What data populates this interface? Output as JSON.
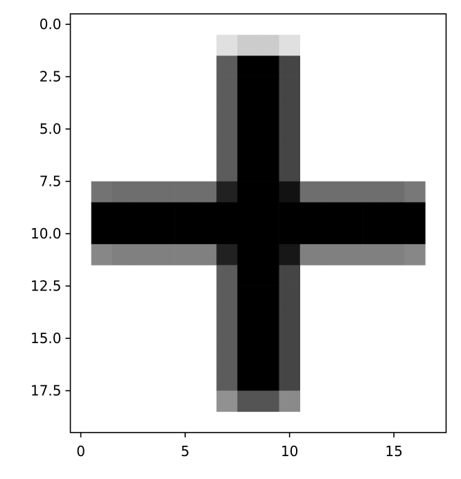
{
  "chart_data": {
    "type": "heatmap",
    "title": "",
    "xlabel": "",
    "ylabel": "",
    "colormap": "gray",
    "grid": false,
    "xlim": [
      -0.5,
      17.5
    ],
    "ylim": [
      19.5,
      -0.5
    ],
    "x_ticks": [
      0,
      5,
      10,
      15
    ],
    "x_tick_labels": [
      "0",
      "5",
      "10",
      "15"
    ],
    "y_ticks": [
      0.0,
      2.5,
      5.0,
      7.5,
      10.0,
      12.5,
      15.0,
      17.5
    ],
    "y_tick_labels": [
      "0.0",
      "2.5",
      "5.0",
      "7.5",
      "10.0",
      "12.5",
      "15.0",
      "17.5"
    ],
    "cells": [
      {
        "x": 7,
        "y": 1,
        "v": 0.88
      },
      {
        "x": 8,
        "y": 1,
        "v": 0.8
      },
      {
        "x": 9,
        "y": 1,
        "v": 0.8
      },
      {
        "x": 10,
        "y": 1,
        "v": 0.88
      },
      {
        "x": 7,
        "y": 2,
        "v": 0.36
      },
      {
        "x": 8,
        "y": 2,
        "v": 0
      },
      {
        "x": 9,
        "y": 2,
        "v": 0
      },
      {
        "x": 10,
        "y": 2,
        "v": 0.27
      },
      {
        "x": 7,
        "y": 3,
        "v": 0.36
      },
      {
        "x": 8,
        "y": 3,
        "v": 0
      },
      {
        "x": 9,
        "y": 3,
        "v": 0
      },
      {
        "x": 10,
        "y": 3,
        "v": 0.27
      },
      {
        "x": 7,
        "y": 4,
        "v": 0.36
      },
      {
        "x": 8,
        "y": 4,
        "v": 0
      },
      {
        "x": 9,
        "y": 4,
        "v": 0
      },
      {
        "x": 10,
        "y": 4,
        "v": 0.27
      },
      {
        "x": 7,
        "y": 5,
        "v": 0.36
      },
      {
        "x": 8,
        "y": 5,
        "v": 0
      },
      {
        "x": 9,
        "y": 5,
        "v": 0
      },
      {
        "x": 10,
        "y": 5,
        "v": 0.27
      },
      {
        "x": 7,
        "y": 6,
        "v": 0.36
      },
      {
        "x": 8,
        "y": 6,
        "v": 0
      },
      {
        "x": 9,
        "y": 6,
        "v": 0
      },
      {
        "x": 10,
        "y": 6,
        "v": 0.27
      },
      {
        "x": 7,
        "y": 7,
        "v": 0.36
      },
      {
        "x": 8,
        "y": 7,
        "v": 0
      },
      {
        "x": 9,
        "y": 7,
        "v": 0
      },
      {
        "x": 10,
        "y": 7,
        "v": 0.27
      },
      {
        "x": 1,
        "y": 8,
        "v": 0.45
      },
      {
        "x": 2,
        "y": 8,
        "v": 0.43
      },
      {
        "x": 3,
        "y": 8,
        "v": 0.43
      },
      {
        "x": 4,
        "y": 8,
        "v": 0.43
      },
      {
        "x": 5,
        "y": 8,
        "v": 0.43
      },
      {
        "x": 6,
        "y": 8,
        "v": 0.43
      },
      {
        "x": 7,
        "y": 8,
        "v": 0.13
      },
      {
        "x": 8,
        "y": 8,
        "v": 0
      },
      {
        "x": 9,
        "y": 8,
        "v": 0
      },
      {
        "x": 10,
        "y": 8,
        "v": 0.07
      },
      {
        "x": 11,
        "y": 8,
        "v": 0.43
      },
      {
        "x": 12,
        "y": 8,
        "v": 0.43
      },
      {
        "x": 13,
        "y": 8,
        "v": 0.43
      },
      {
        "x": 14,
        "y": 8,
        "v": 0.43
      },
      {
        "x": 15,
        "y": 8,
        "v": 0.43
      },
      {
        "x": 16,
        "y": 8,
        "v": 0.47
      },
      {
        "x": 1,
        "y": 9,
        "v": 0
      },
      {
        "x": 2,
        "y": 9,
        "v": 0
      },
      {
        "x": 3,
        "y": 9,
        "v": 0
      },
      {
        "x": 4,
        "y": 9,
        "v": 0
      },
      {
        "x": 5,
        "y": 9,
        "v": 0
      },
      {
        "x": 6,
        "y": 9,
        "v": 0
      },
      {
        "x": 7,
        "y": 9,
        "v": 0
      },
      {
        "x": 8,
        "y": 9,
        "v": 0
      },
      {
        "x": 9,
        "y": 9,
        "v": 0
      },
      {
        "x": 10,
        "y": 9,
        "v": 0
      },
      {
        "x": 11,
        "y": 9,
        "v": 0
      },
      {
        "x": 12,
        "y": 9,
        "v": 0
      },
      {
        "x": 13,
        "y": 9,
        "v": 0
      },
      {
        "x": 14,
        "y": 9,
        "v": 0
      },
      {
        "x": 15,
        "y": 9,
        "v": 0
      },
      {
        "x": 16,
        "y": 9,
        "v": 0
      },
      {
        "x": 1,
        "y": 10,
        "v": 0
      },
      {
        "x": 2,
        "y": 10,
        "v": 0
      },
      {
        "x": 3,
        "y": 10,
        "v": 0
      },
      {
        "x": 4,
        "y": 10,
        "v": 0
      },
      {
        "x": 5,
        "y": 10,
        "v": 0
      },
      {
        "x": 6,
        "y": 10,
        "v": 0
      },
      {
        "x": 7,
        "y": 10,
        "v": 0
      },
      {
        "x": 8,
        "y": 10,
        "v": 0
      },
      {
        "x": 9,
        "y": 10,
        "v": 0
      },
      {
        "x": 10,
        "y": 10,
        "v": 0
      },
      {
        "x": 11,
        "y": 10,
        "v": 0
      },
      {
        "x": 12,
        "y": 10,
        "v": 0
      },
      {
        "x": 13,
        "y": 10,
        "v": 0
      },
      {
        "x": 14,
        "y": 10,
        "v": 0
      },
      {
        "x": 15,
        "y": 10,
        "v": 0
      },
      {
        "x": 16,
        "y": 10,
        "v": 0
      },
      {
        "x": 1,
        "y": 11,
        "v": 0.53
      },
      {
        "x": 2,
        "y": 11,
        "v": 0.5
      },
      {
        "x": 3,
        "y": 11,
        "v": 0.5
      },
      {
        "x": 4,
        "y": 11,
        "v": 0.5
      },
      {
        "x": 5,
        "y": 11,
        "v": 0.5
      },
      {
        "x": 6,
        "y": 11,
        "v": 0.5
      },
      {
        "x": 7,
        "y": 11,
        "v": 0.13
      },
      {
        "x": 8,
        "y": 11,
        "v": 0
      },
      {
        "x": 9,
        "y": 11,
        "v": 0
      },
      {
        "x": 10,
        "y": 11,
        "v": 0.09
      },
      {
        "x": 11,
        "y": 11,
        "v": 0.5
      },
      {
        "x": 12,
        "y": 11,
        "v": 0.5
      },
      {
        "x": 13,
        "y": 11,
        "v": 0.5
      },
      {
        "x": 14,
        "y": 11,
        "v": 0.5
      },
      {
        "x": 15,
        "y": 11,
        "v": 0.5
      },
      {
        "x": 16,
        "y": 11,
        "v": 0.53
      },
      {
        "x": 7,
        "y": 12,
        "v": 0.36
      },
      {
        "x": 8,
        "y": 12,
        "v": 0
      },
      {
        "x": 9,
        "y": 12,
        "v": 0
      },
      {
        "x": 10,
        "y": 12,
        "v": 0.27
      },
      {
        "x": 7,
        "y": 13,
        "v": 0.36
      },
      {
        "x": 8,
        "y": 13,
        "v": 0
      },
      {
        "x": 9,
        "y": 13,
        "v": 0
      },
      {
        "x": 10,
        "y": 13,
        "v": 0.27
      },
      {
        "x": 7,
        "y": 14,
        "v": 0.36
      },
      {
        "x": 8,
        "y": 14,
        "v": 0
      },
      {
        "x": 9,
        "y": 14,
        "v": 0
      },
      {
        "x": 10,
        "y": 14,
        "v": 0.27
      },
      {
        "x": 7,
        "y": 15,
        "v": 0.36
      },
      {
        "x": 8,
        "y": 15,
        "v": 0
      },
      {
        "x": 9,
        "y": 15,
        "v": 0
      },
      {
        "x": 10,
        "y": 15,
        "v": 0.27
      },
      {
        "x": 7,
        "y": 16,
        "v": 0.36
      },
      {
        "x": 8,
        "y": 16,
        "v": 0
      },
      {
        "x": 9,
        "y": 16,
        "v": 0
      },
      {
        "x": 10,
        "y": 16,
        "v": 0.27
      },
      {
        "x": 7,
        "y": 17,
        "v": 0.36
      },
      {
        "x": 8,
        "y": 17,
        "v": 0
      },
      {
        "x": 9,
        "y": 17,
        "v": 0
      },
      {
        "x": 10,
        "y": 17,
        "v": 0.27
      },
      {
        "x": 7,
        "y": 18,
        "v": 0.57
      },
      {
        "x": 8,
        "y": 18,
        "v": 0.33
      },
      {
        "x": 9,
        "y": 18,
        "v": 0.33
      },
      {
        "x": 10,
        "y": 18,
        "v": 0.54
      }
    ]
  }
}
